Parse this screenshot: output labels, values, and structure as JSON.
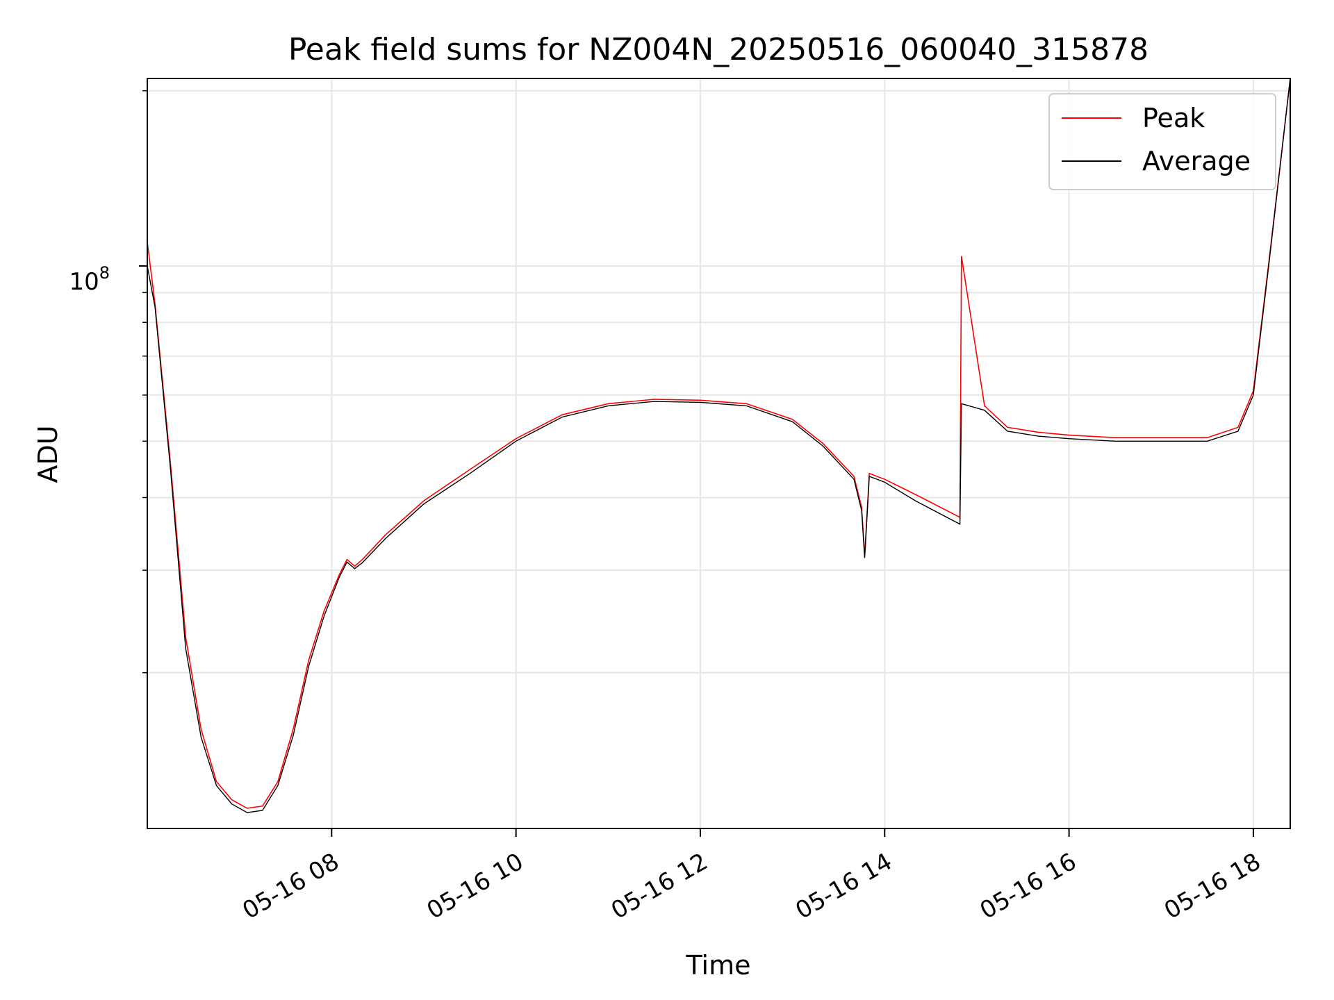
{
  "chart_data": {
    "type": "line",
    "title": "Peak field sums for NZ004N_20250516_060040_315878",
    "xlabel": "Time",
    "ylabel": "ADU",
    "y_scale": "log",
    "grid": true,
    "legend_position": "top-right",
    "x_axis_type": "datetime",
    "xlim": [
      "2025-05-16 06:00",
      "2025-05-16 18:24"
    ],
    "ylim": [
      10800000,
      210000000
    ],
    "x_ticks": [
      "2025-05-16 08:00",
      "2025-05-16 10:00",
      "2025-05-16 12:00",
      "2025-05-16 14:00",
      "2025-05-16 16:00",
      "2025-05-16 18:00"
    ],
    "x_tick_labels": [
      "05-16 08",
      "05-16 10",
      "05-16 12",
      "05-16 14",
      "05-16 16",
      "05-16 18"
    ],
    "y_major_ticks": [
      100000000
    ],
    "y_major_tick_labels": [
      "10",
      "8"
    ],
    "y_minor_ticks": [
      20000000,
      30000000,
      40000000,
      50000000,
      60000000,
      70000000,
      80000000,
      90000000,
      200000000
    ],
    "series": [
      {
        "name": "Average",
        "color": "#000000",
        "x": [
          "2025-05-16 06:00",
          "2025-05-16 06:05",
          "2025-05-16 06:15",
          "2025-05-16 06:25",
          "2025-05-16 06:35",
          "2025-05-16 06:45",
          "2025-05-16 06:55",
          "2025-05-16 07:05",
          "2025-05-16 07:15",
          "2025-05-16 07:25",
          "2025-05-16 07:35",
          "2025-05-16 07:45",
          "2025-05-16 07:55",
          "2025-05-16 08:05",
          "2025-05-16 08:10",
          "2025-05-16 08:15",
          "2025-05-16 08:20",
          "2025-05-16 08:35",
          "2025-05-16 09:00",
          "2025-05-16 09:30",
          "2025-05-16 10:00",
          "2025-05-16 10:30",
          "2025-05-16 11:00",
          "2025-05-16 11:30",
          "2025-05-16 12:00",
          "2025-05-16 12:30",
          "2025-05-16 13:00",
          "2025-05-16 13:20",
          "2025-05-16 13:40",
          "2025-05-16 13:45",
          "2025-05-16 13:47",
          "2025-05-16 13:50",
          "2025-05-16 14:00",
          "2025-05-16 14:20",
          "2025-05-16 14:49",
          "2025-05-16 14:50",
          "2025-05-16 15:05",
          "2025-05-16 15:20",
          "2025-05-16 15:40",
          "2025-05-16 16:00",
          "2025-05-16 16:30",
          "2025-05-16 17:00",
          "2025-05-16 17:30",
          "2025-05-16 17:50",
          "2025-05-16 18:00",
          "2025-05-16 18:10",
          "2025-05-16 18:24"
        ],
        "values": [
          100000000,
          85000000,
          45000000,
          22000000,
          15500000,
          12800000,
          11900000,
          11500000,
          11600000,
          12800000,
          15600000,
          20500000,
          25000000,
          29200000,
          31000000,
          30200000,
          30900000,
          34000000,
          39000000,
          44000000,
          50000000,
          55000000,
          57500000,
          58500000,
          58300000,
          57500000,
          54000000,
          49000000,
          43000000,
          38000000,
          31500000,
          43500000,
          42500000,
          39500000,
          36000000,
          58000000,
          56500000,
          52000000,
          51000000,
          50500000,
          50000000,
          50000000,
          50000000,
          52000000,
          60000000,
          100000000,
          210000000
        ]
      },
      {
        "name": "Peak",
        "color": "#ff0000",
        "x": [
          "2025-05-16 06:00",
          "2025-05-16 06:05",
          "2025-05-16 06:15",
          "2025-05-16 06:25",
          "2025-05-16 06:35",
          "2025-05-16 06:45",
          "2025-05-16 06:55",
          "2025-05-16 07:05",
          "2025-05-16 07:15",
          "2025-05-16 07:25",
          "2025-05-16 07:35",
          "2025-05-16 07:45",
          "2025-05-16 07:55",
          "2025-05-16 08:05",
          "2025-05-16 08:10",
          "2025-05-16 08:15",
          "2025-05-16 08:20",
          "2025-05-16 08:35",
          "2025-05-16 09:00",
          "2025-05-16 09:30",
          "2025-05-16 10:00",
          "2025-05-16 10:30",
          "2025-05-16 11:00",
          "2025-05-16 11:30",
          "2025-05-16 12:00",
          "2025-05-16 12:30",
          "2025-05-16 13:00",
          "2025-05-16 13:20",
          "2025-05-16 13:40",
          "2025-05-16 13:45",
          "2025-05-16 13:47",
          "2025-05-16 13:50",
          "2025-05-16 14:00",
          "2025-05-16 14:20",
          "2025-05-16 14:49",
          "2025-05-16 14:50",
          "2025-05-16 15:05",
          "2025-05-16 15:20",
          "2025-05-16 15:40",
          "2025-05-16 16:00",
          "2025-05-16 16:30",
          "2025-05-16 17:00",
          "2025-05-16 17:30",
          "2025-05-16 17:50",
          "2025-05-16 18:00",
          "2025-05-16 18:10",
          "2025-05-16 18:24"
        ],
        "values": [
          110000000,
          86000000,
          46000000,
          23000000,
          16000000,
          13000000,
          12100000,
          11700000,
          11800000,
          13000000,
          16000000,
          21000000,
          25500000,
          29500000,
          31300000,
          30500000,
          31300000,
          34500000,
          39500000,
          44700000,
          50500000,
          55500000,
          58000000,
          59000000,
          58800000,
          58000000,
          54500000,
          49500000,
          43500000,
          38500000,
          31800000,
          44000000,
          43000000,
          40500000,
          37000000,
          104000000,
          57500000,
          52800000,
          51800000,
          51200000,
          50700000,
          50700000,
          50700000,
          52800000,
          61000000,
          101000000,
          212000000
        ]
      }
    ]
  }
}
